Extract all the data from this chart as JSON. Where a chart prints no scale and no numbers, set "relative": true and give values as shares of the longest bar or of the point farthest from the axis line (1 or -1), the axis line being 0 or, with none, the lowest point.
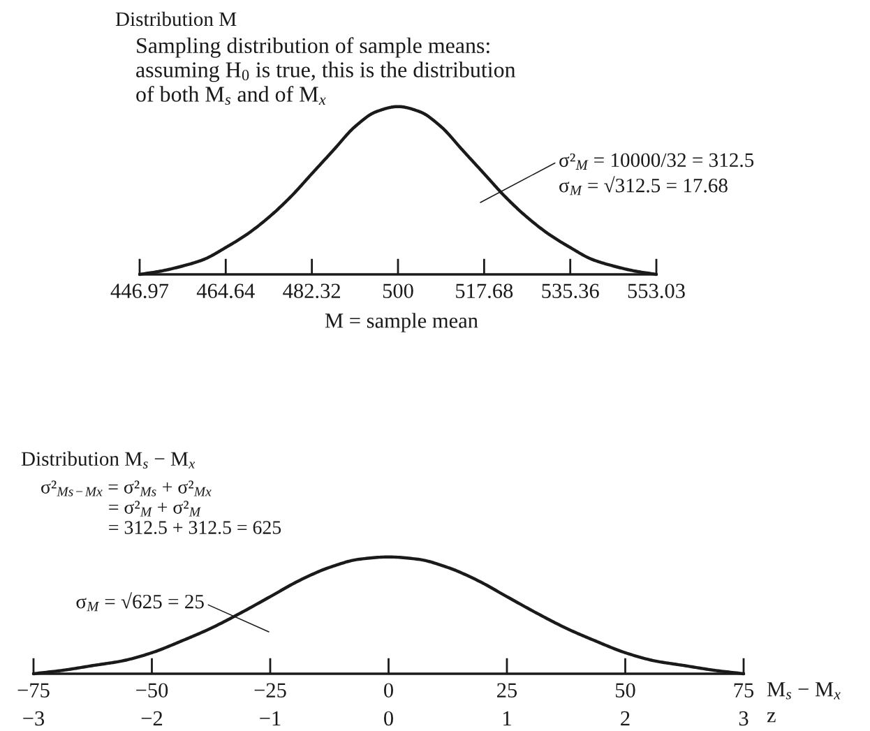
{
  "chart_data": [
    {
      "type": "line",
      "title": "Distribution M",
      "subtitle": "Sampling distribution of sample means:\nassuming H$_{0}$ is true, this is the distribution\nof both M$_{s}$ and of M$_{x}$",
      "xlabel": "M = sample mean",
      "relative": true,
      "tick_labels": "x",
      "xlim": [
        446.97,
        553.03
      ],
      "xticks": [
        446.97,
        464.64,
        482.32,
        500,
        517.68,
        535.36,
        553.03
      ],
      "x": [
        446.97,
        451.39,
        455.81,
        460.22,
        464.64,
        469.06,
        473.48,
        477.9,
        482.32,
        486.74,
        491.16,
        495.58,
        500,
        504.42,
        508.84,
        513.26,
        517.68,
        522.1,
        526.52,
        530.94,
        535.36,
        539.78,
        544.2,
        548.61,
        553.03
      ],
      "series": [
        {
          "color": "#1a1a1a",
          "values": [
            0,
            0.02,
            0.05,
            0.09,
            0.16,
            0.24,
            0.34,
            0.46,
            0.6,
            0.74,
            0.88,
            0.97,
            1,
            0.97,
            0.88,
            0.74,
            0.6,
            0.46,
            0.34,
            0.24,
            0.16,
            0.09,
            0.05,
            0.02,
            0
          ]
        }
      ],
      "annotations": [
        "σ²$_{M}$ = 10000/32 = 312.5",
        "σ$_{M}$ = √312.5 = 17.68"
      ]
    },
    {
      "type": "line",
      "title": "Distribution M$_{s}$ − M$_{x}$",
      "subtitle": "σ²$_{Ms−Mx}$ = σ²$_{Ms}$ + σ²$_{Mx}$\n= σ²$_{M}$ + σ²$_{M}$\n= 312.5 + 312.5 = 625",
      "xlabel": "M$_{s}$ − M$_{x}$",
      "x2label": "z",
      "relative": true,
      "tick_labels": "x",
      "xlim": [
        -75,
        75
      ],
      "xticks": [
        {
          "value": -75,
          "label": "−75"
        },
        {
          "value": -50,
          "label": "−50"
        },
        {
          "value": -25,
          "label": "−25"
        },
        0,
        25,
        50,
        75
      ],
      "x2lim": [
        -3,
        3
      ],
      "x2ticks": [
        {
          "value": -3,
          "label": "−3"
        },
        {
          "value": -2,
          "label": "−2"
        },
        {
          "value": -1,
          "label": "−1"
        },
        0,
        1,
        2,
        3
      ],
      "x": [
        -75,
        -68.75,
        -62.5,
        -56.25,
        -50,
        -43.75,
        -37.5,
        -31.25,
        -25,
        -18.75,
        -12.5,
        -6.25,
        0,
        6.25,
        12.5,
        18.75,
        25,
        31.25,
        37.5,
        43.75,
        50,
        56.25,
        62.5,
        68.75,
        75
      ],
      "series": [
        {
          "color": "#1a1a1a",
          "values": [
            0,
            0.03,
            0.07,
            0.11,
            0.18,
            0.28,
            0.39,
            0.52,
            0.66,
            0.8,
            0.91,
            0.98,
            1,
            0.98,
            0.91,
            0.8,
            0.66,
            0.52,
            0.39,
            0.28,
            0.18,
            0.11,
            0.07,
            0.03,
            0
          ]
        }
      ],
      "annotations": [
        "σ$_{M}$ = √625 = 25"
      ]
    }
  ]
}
